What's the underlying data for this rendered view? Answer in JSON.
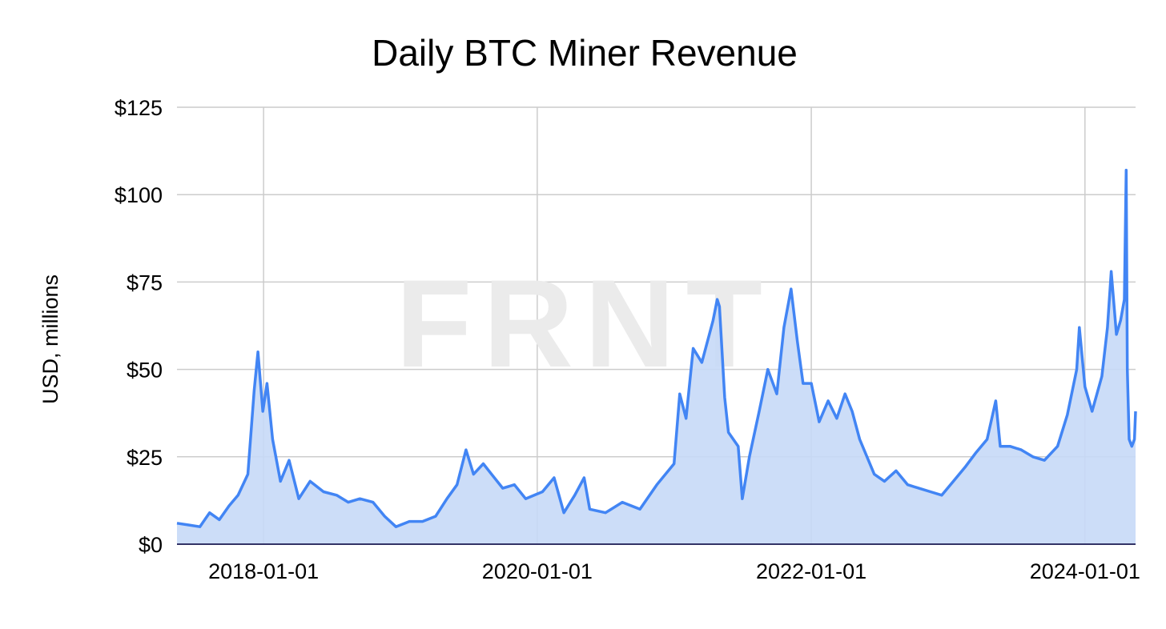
{
  "chart_data": {
    "type": "area",
    "title": "Daily BTC Miner Revenue",
    "ylabel": "USD, millions",
    "xlabel": "",
    "watermark": "FRNT",
    "xlim": [
      "2017-05-15",
      "2024-05-15"
    ],
    "ylim": [
      0,
      125
    ],
    "x_ticks": [
      {
        "x": "2018-01-01",
        "label": "2018-01-01"
      },
      {
        "x": "2020-01-01",
        "label": "2020-01-01"
      },
      {
        "x": "2022-01-01",
        "label": "2022-01-01"
      },
      {
        "x": "2024-01-01",
        "label": "2024-01-01"
      }
    ],
    "y_ticks": [
      {
        "value": 0,
        "label": "$0"
      },
      {
        "value": 25,
        "label": "$25"
      },
      {
        "value": 50,
        "label": "$50"
      },
      {
        "value": 75,
        "label": "$75"
      },
      {
        "value": 100,
        "label": "$100"
      },
      {
        "value": 125,
        "label": "$125"
      }
    ],
    "grid": true,
    "colors": {
      "line": "#4285f4",
      "fill": "#c6d9f7",
      "grid": "#cccccc",
      "baseline": "#333366"
    },
    "series": [
      {
        "points": [
          [
            "2017-05-15",
            6
          ],
          [
            "2017-06-15",
            5.5
          ],
          [
            "2017-07-15",
            5
          ],
          [
            "2017-08-10",
            9
          ],
          [
            "2017-09-05",
            7
          ],
          [
            "2017-10-01",
            11
          ],
          [
            "2017-10-25",
            14
          ],
          [
            "2017-11-20",
            20
          ],
          [
            "2017-12-07",
            44
          ],
          [
            "2017-12-17",
            55
          ],
          [
            "2017-12-30",
            38
          ],
          [
            "2018-01-10",
            46
          ],
          [
            "2018-01-25",
            30
          ],
          [
            "2018-02-15",
            18
          ],
          [
            "2018-03-10",
            24
          ],
          [
            "2018-04-05",
            13
          ],
          [
            "2018-05-05",
            18
          ],
          [
            "2018-06-10",
            15
          ],
          [
            "2018-07-15",
            14
          ],
          [
            "2018-08-15",
            12
          ],
          [
            "2018-09-15",
            13
          ],
          [
            "2018-10-20",
            12
          ],
          [
            "2018-11-20",
            8
          ],
          [
            "2018-12-20",
            5
          ],
          [
            "2019-01-25",
            6.5
          ],
          [
            "2019-03-01",
            6.5
          ],
          [
            "2019-04-05",
            8
          ],
          [
            "2019-05-05",
            13
          ],
          [
            "2019-06-01",
            17
          ],
          [
            "2019-06-25",
            27
          ],
          [
            "2019-07-15",
            20
          ],
          [
            "2019-08-10",
            23
          ],
          [
            "2019-09-01",
            20
          ],
          [
            "2019-10-01",
            16
          ],
          [
            "2019-11-01",
            17
          ],
          [
            "2019-12-01",
            13
          ],
          [
            "2020-01-15",
            15
          ],
          [
            "2020-02-15",
            19
          ],
          [
            "2020-03-12",
            9
          ],
          [
            "2020-04-10",
            14
          ],
          [
            "2020-05-05",
            19
          ],
          [
            "2020-05-20",
            10
          ],
          [
            "2020-07-01",
            9
          ],
          [
            "2020-08-15",
            12
          ],
          [
            "2020-10-01",
            10
          ],
          [
            "2020-11-15",
            17
          ],
          [
            "2020-12-31",
            23
          ],
          [
            "2021-01-15",
            43
          ],
          [
            "2021-02-01",
            36
          ],
          [
            "2021-02-20",
            56
          ],
          [
            "2021-03-15",
            52
          ],
          [
            "2021-04-14",
            64
          ],
          [
            "2021-04-25",
            70
          ],
          [
            "2021-05-01",
            68
          ],
          [
            "2021-05-15",
            42
          ],
          [
            "2021-05-25",
            32
          ],
          [
            "2021-06-20",
            28
          ],
          [
            "2021-07-01",
            13
          ],
          [
            "2021-07-20",
            25
          ],
          [
            "2021-08-15",
            38
          ],
          [
            "2021-09-07",
            50
          ],
          [
            "2021-10-01",
            43
          ],
          [
            "2021-10-20",
            62
          ],
          [
            "2021-11-08",
            73
          ],
          [
            "2021-11-25",
            58
          ],
          [
            "2021-12-10",
            46
          ],
          [
            "2022-01-01",
            46
          ],
          [
            "2022-01-22",
            35
          ],
          [
            "2022-02-15",
            41
          ],
          [
            "2022-03-10",
            36
          ],
          [
            "2022-04-01",
            43
          ],
          [
            "2022-04-20",
            38
          ],
          [
            "2022-05-10",
            30
          ],
          [
            "2022-06-18",
            20
          ],
          [
            "2022-07-15",
            18
          ],
          [
            "2022-08-15",
            21
          ],
          [
            "2022-09-15",
            17
          ],
          [
            "2022-10-15",
            16
          ],
          [
            "2022-11-15",
            15
          ],
          [
            "2022-12-15",
            14
          ],
          [
            "2023-01-15",
            18
          ],
          [
            "2023-02-15",
            22
          ],
          [
            "2023-03-15",
            26
          ],
          [
            "2023-04-15",
            30
          ],
          [
            "2023-05-08",
            41
          ],
          [
            "2023-05-20",
            28
          ],
          [
            "2023-06-15",
            28
          ],
          [
            "2023-07-15",
            27
          ],
          [
            "2023-08-15",
            25
          ],
          [
            "2023-09-15",
            24
          ],
          [
            "2023-10-20",
            28
          ],
          [
            "2023-11-15",
            37
          ],
          [
            "2023-12-10",
            50
          ],
          [
            "2023-12-17",
            62
          ],
          [
            "2024-01-01",
            45
          ],
          [
            "2024-01-20",
            38
          ],
          [
            "2024-02-15",
            48
          ],
          [
            "2024-03-01",
            62
          ],
          [
            "2024-03-11",
            78
          ],
          [
            "2024-03-25",
            60
          ],
          [
            "2024-04-05",
            64
          ],
          [
            "2024-04-15",
            70
          ],
          [
            "2024-04-20",
            107
          ],
          [
            "2024-04-23",
            50
          ],
          [
            "2024-04-28",
            30
          ],
          [
            "2024-05-05",
            28
          ],
          [
            "2024-05-12",
            30
          ],
          [
            "2024-05-15",
            38
          ]
        ]
      }
    ]
  }
}
